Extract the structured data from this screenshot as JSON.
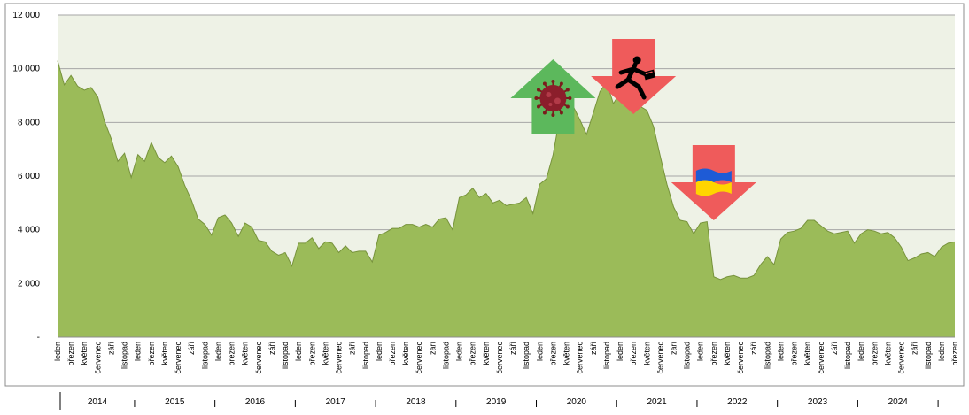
{
  "chart_data": {
    "type": "area",
    "title": "",
    "xlabel": "",
    "ylabel": "",
    "ylim": [
      0,
      12000
    ],
    "y_ticks": [
      {
        "value": 0,
        "label": "-"
      },
      {
        "value": 2000,
        "label": "2 000"
      },
      {
        "value": 4000,
        "label": "4 000"
      },
      {
        "value": 6000,
        "label": "6 000"
      },
      {
        "value": 8000,
        "label": "8 000"
      },
      {
        "value": 10000,
        "label": "10 000"
      },
      {
        "value": 12000,
        "label": "12 000"
      }
    ],
    "grid": true,
    "colors": {
      "fill": "#9bbb59",
      "stroke": "#77933c",
      "plot_bg": "#eef2e6",
      "grid": "#a6a6a6"
    },
    "x_tick_labels": [
      "leden",
      "březen",
      "květen",
      "červenec",
      "září",
      "listopad",
      "leden",
      "březen",
      "květen",
      "červenec",
      "září",
      "listopad",
      "leden",
      "březen",
      "květen",
      "červenec",
      "září",
      "listopad",
      "leden",
      "březen",
      "květen",
      "červenec",
      "září",
      "listopad",
      "leden",
      "březen",
      "květen",
      "červenec",
      "září",
      "listopad",
      "leden",
      "březen",
      "květen",
      "červenec",
      "září",
      "listopad",
      "leden",
      "březen",
      "květen",
      "červenec",
      "září",
      "listopad",
      "leden",
      "březen",
      "květen",
      "červenec",
      "září",
      "listopad",
      "leden",
      "březen",
      "květen",
      "červenec",
      "září",
      "listopad",
      "leden",
      "březen",
      "květen",
      "červenec",
      "září",
      "listopad",
      "leden",
      "březen",
      "květen",
      "červenec",
      "září",
      "listopad",
      "leden",
      "březen"
    ],
    "years": [
      "2014",
      "2015",
      "2016",
      "2017",
      "2018",
      "2019",
      "2020",
      "2021",
      "2022",
      "2023",
      "2024"
    ],
    "x_start": "2014-01",
    "x_end": "2025-03",
    "values": [
      10300,
      9400,
      9750,
      9350,
      9200,
      9300,
      8950,
      8050,
      7400,
      6550,
      6850,
      5950,
      6800,
      6550,
      7250,
      6700,
      6500,
      6750,
      6350,
      5650,
      5100,
      4400,
      4200,
      3800,
      4450,
      4550,
      4250,
      3750,
      4250,
      4100,
      3600,
      3550,
      3200,
      3050,
      3150,
      2650,
      3500,
      3500,
      3700,
      3300,
      3550,
      3500,
      3150,
      3400,
      3150,
      3200,
      3200,
      2800,
      3800,
      3900,
      4050,
      4050,
      4200,
      4200,
      4100,
      4200,
      4100,
      4400,
      4450,
      4000,
      5200,
      5300,
      5550,
      5200,
      5350,
      5000,
      5100,
      4900,
      4950,
      5000,
      5200,
      4600,
      5700,
      5900,
      6800,
      8200,
      8750,
      8600,
      8100,
      7550,
      8350,
      9150,
      9500,
      8700,
      9100,
      8800,
      9000,
      8600,
      8450,
      7850,
      6750,
      5700,
      4850,
      4350,
      4300,
      3850,
      4250,
      4300,
      2250,
      2150,
      2250,
      2300,
      2200,
      2200,
      2300,
      2700,
      3000,
      2700,
      3650,
      3900,
      3950,
      4050,
      4350,
      4350,
      4150,
      3950,
      3850,
      3900,
      3950,
      3500,
      3850,
      4000,
      3950,
      3850,
      3900,
      3700,
      3350,
      2850,
      2950,
      3100,
      3150,
      3000,
      3350,
      3500,
      3550
    ],
    "annotations": [
      {
        "date": "2020-03",
        "direction": "up",
        "color": "#5cb85c",
        "icon": "virus-icon"
      },
      {
        "date": "2021-03",
        "direction": "down",
        "color": "#ef5b5b",
        "icon": "running-businessman-icon"
      },
      {
        "date": "2022-03",
        "direction": "down",
        "color": "#ef5b5b",
        "icon": "ukraine-flag-icon"
      }
    ]
  }
}
